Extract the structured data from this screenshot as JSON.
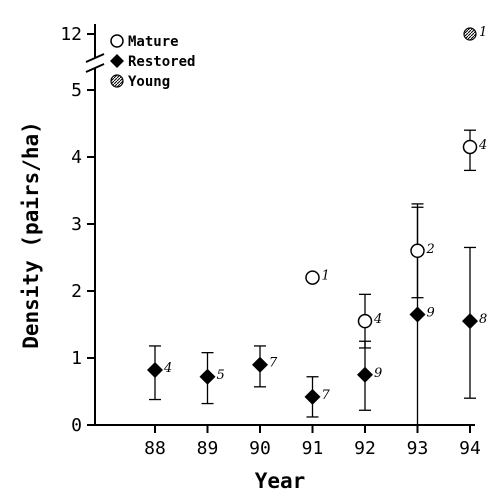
{
  "chart_data": {
    "type": "scatter",
    "title": "",
    "xlabel": "Year",
    "ylabel": "Density (pairs/ha)",
    "x_categories": [
      "88",
      "89",
      "90",
      "91",
      "92",
      "93",
      "94"
    ],
    "y_ticks": [
      "0",
      "1",
      "2",
      "3",
      "4",
      "5",
      "12"
    ],
    "y_axis_break": {
      "from": 5,
      "to": 12
    },
    "ylim": [
      0,
      12
    ],
    "grid": false,
    "legend_position": "top-left",
    "series": [
      {
        "name": "Mature",
        "marker": "open-circle",
        "points": [
          {
            "x": "91",
            "y": 2.2,
            "n": "1"
          },
          {
            "x": "92",
            "y": 1.55,
            "err_low": 1.15,
            "err_high": 1.95,
            "n": "4"
          },
          {
            "x": "93",
            "y": 2.6,
            "err_low": 1.9,
            "err_high": 3.3,
            "n": "2"
          },
          {
            "x": "94",
            "y": 4.15,
            "err_low": 3.8,
            "err_high": 4.4,
            "n": "4"
          }
        ]
      },
      {
        "name": "Restored",
        "marker": "filled-diamond",
        "points": [
          {
            "x": "88",
            "y": 0.82,
            "err_low": 0.38,
            "err_high": 1.18,
            "n": "4"
          },
          {
            "x": "89",
            "y": 0.72,
            "err_low": 0.32,
            "err_high": 1.08,
            "n": "5"
          },
          {
            "x": "90",
            "y": 0.9,
            "err_low": 0.57,
            "err_high": 1.18,
            "n": "7"
          },
          {
            "x": "91",
            "y": 0.42,
            "err_low": 0.12,
            "err_high": 0.72,
            "n": "7"
          },
          {
            "x": "92",
            "y": 0.75,
            "err_low": 0.22,
            "err_high": 1.25,
            "n": "9"
          },
          {
            "x": "93",
            "y": 1.65,
            "err_low": 0.0,
            "err_high": 3.25,
            "n": "9"
          },
          {
            "x": "94",
            "y": 1.55,
            "err_low": 0.4,
            "err_high": 2.65,
            "n": "8"
          }
        ]
      },
      {
        "name": "Young",
        "marker": "hatched-circle",
        "points": [
          {
            "x": "94",
            "y": 12,
            "n": "1"
          }
        ]
      }
    ]
  }
}
